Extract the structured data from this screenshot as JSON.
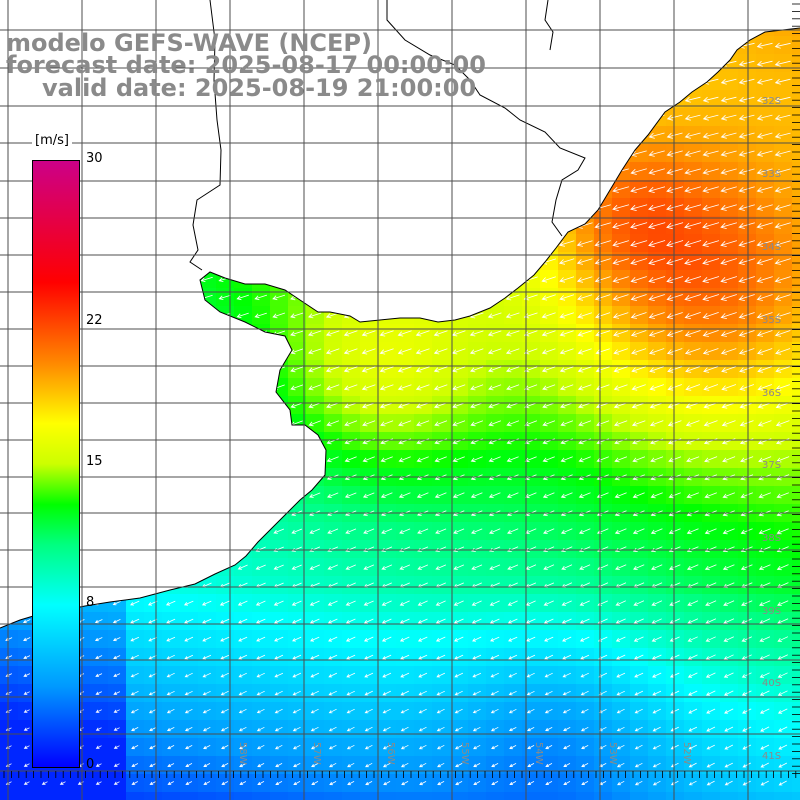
{
  "title": {
    "line1": "modelo GEFS-WAVE (NCEP)",
    "line2": "forecast date: 2025-08-17 00:00:00",
    "line3": "valid date: 2025-08-19 21:00:00"
  },
  "colorbar": {
    "units": "[m/s]",
    "min": 0,
    "max": 30,
    "ticks": [
      {
        "value": 30,
        "label": "30"
      },
      {
        "value": 22,
        "label": "22"
      },
      {
        "value": 15,
        "label": "15"
      },
      {
        "value": 8,
        "label": "8"
      },
      {
        "value": 0,
        "label": "0"
      }
    ],
    "stops": [
      {
        "value": 0,
        "color": "#0000ff"
      },
      {
        "value": 4,
        "color": "#0099ff"
      },
      {
        "value": 8,
        "color": "#00ffff"
      },
      {
        "value": 11,
        "color": "#00ff80"
      },
      {
        "value": 13,
        "color": "#00ff00"
      },
      {
        "value": 15,
        "color": "#ccff00"
      },
      {
        "value": 17,
        "color": "#ffff00"
      },
      {
        "value": 20,
        "color": "#ff8800"
      },
      {
        "value": 24,
        "color": "#ff0000"
      },
      {
        "value": 30,
        "color": "#cc0088"
      }
    ]
  },
  "map": {
    "wind_direction": "southwest-bound",
    "colors": {
      "land": "#ffffff",
      "coast": "#000000",
      "grid": "#4d4d4d",
      "arrows": "#ffffff"
    },
    "lat_labels": [
      "32S",
      "33S",
      "34S",
      "35S",
      "36S",
      "37S",
      "38S",
      "39S",
      "40S",
      "41S"
    ],
    "lon_labels": [
      "58W",
      "57W",
      "56W",
      "55W",
      "54W",
      "53W",
      "52W"
    ]
  }
}
